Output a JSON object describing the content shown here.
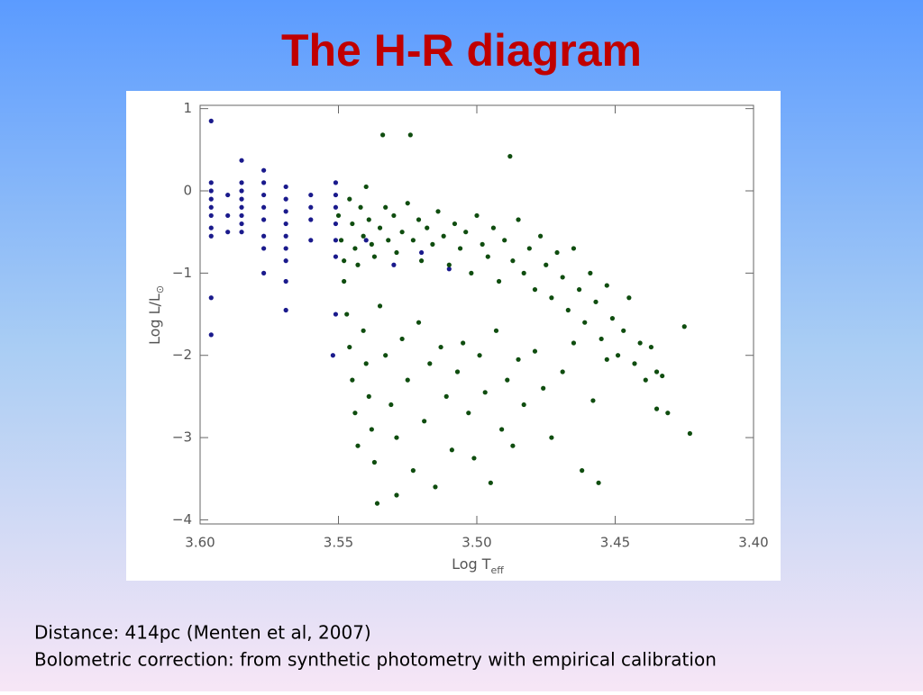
{
  "chart_data": {
    "type": "scatter",
    "title": "The H-R diagram",
    "x_label": "Log T",
    "x_label_sub": "eff",
    "y_label": "Log L/L",
    "y_label_sub": "⊙",
    "xlim": [
      3.6,
      3.4
    ],
    "xticks": [
      {
        "value": 3.6,
        "label": "3.60"
      },
      3.55,
      {
        "value": 3.5,
        "label": "3.50"
      },
      3.45,
      {
        "value": 3.4,
        "label": "3.40"
      }
    ],
    "ylim": [
      -4.05,
      1.04
    ],
    "yticks": [
      1,
      0,
      {
        "value": -1,
        "label": "−1"
      },
      {
        "value": -2,
        "label": "−2"
      },
      {
        "value": -3,
        "label": "−3"
      },
      {
        "value": -4,
        "label": "−4"
      }
    ],
    "series": [
      {
        "color": "#1a1a8c",
        "x": [
          3.596,
          3.596,
          3.596,
          3.596,
          3.596,
          3.596,
          3.596,
          3.596,
          3.596,
          3.596,
          3.59,
          3.59,
          3.59,
          3.585,
          3.585,
          3.585,
          3.585,
          3.585,
          3.585,
          3.585,
          3.585,
          3.577,
          3.577,
          3.577,
          3.577,
          3.577,
          3.577,
          3.577,
          3.577,
          3.569,
          3.569,
          3.569,
          3.569,
          3.569,
          3.569,
          3.569,
          3.569,
          3.569,
          3.56,
          3.56,
          3.56,
          3.56,
          3.551,
          3.551,
          3.551,
          3.551,
          3.551,
          3.551,
          3.551,
          3.552,
          3.54,
          3.53,
          3.52,
          3.51
        ],
        "values": [
          0.85,
          0.1,
          0.0,
          -0.1,
          -0.2,
          -0.3,
          -0.45,
          -0.55,
          -1.3,
          -1.75,
          -0.05,
          -0.3,
          -0.5,
          0.37,
          0.1,
          0.0,
          -0.1,
          -0.2,
          -0.3,
          -0.4,
          -0.5,
          0.25,
          0.1,
          -0.05,
          -0.2,
          -0.35,
          -0.55,
          -0.7,
          -1.0,
          0.05,
          -0.1,
          -0.25,
          -0.4,
          -0.55,
          -0.7,
          -0.85,
          -1.1,
          -1.45,
          -0.05,
          -0.2,
          -0.35,
          -0.6,
          0.1,
          -0.05,
          -0.2,
          -0.4,
          -0.6,
          -0.8,
          -1.5,
          -2.0,
          -0.6,
          -0.9,
          -0.75,
          -0.95
        ]
      },
      {
        "color": "#0f4d0f",
        "x": [
          3.546,
          3.545,
          3.544,
          3.543,
          3.542,
          3.541,
          3.54,
          3.539,
          3.538,
          3.537,
          3.535,
          3.534,
          3.533,
          3.532,
          3.53,
          3.529,
          3.527,
          3.525,
          3.524,
          3.523,
          3.521,
          3.52,
          3.518,
          3.516,
          3.514,
          3.512,
          3.51,
          3.508,
          3.506,
          3.504,
          3.502,
          3.5,
          3.498,
          3.496,
          3.494,
          3.492,
          3.49,
          3.488,
          3.487,
          3.485,
          3.483,
          3.481,
          3.479,
          3.477,
          3.475,
          3.473,
          3.471,
          3.469,
          3.467,
          3.465,
          3.463,
          3.461,
          3.459,
          3.457,
          3.455,
          3.453,
          3.451,
          3.449,
          3.447,
          3.445,
          3.443,
          3.441,
          3.439,
          3.437,
          3.435,
          3.433,
          3.431,
          3.425,
          3.423,
          3.435,
          3.547,
          3.546,
          3.545,
          3.544,
          3.543,
          3.541,
          3.54,
          3.539,
          3.538,
          3.537,
          3.535,
          3.533,
          3.531,
          3.529,
          3.527,
          3.525,
          3.523,
          3.521,
          3.519,
          3.517,
          3.515,
          3.513,
          3.511,
          3.509,
          3.507,
          3.505,
          3.503,
          3.501,
          3.499,
          3.497,
          3.495,
          3.493,
          3.491,
          3.489,
          3.487,
          3.485,
          3.483,
          3.479,
          3.476,
          3.473,
          3.469,
          3.465,
          3.462,
          3.458,
          3.456,
          3.453,
          3.536,
          3.529,
          3.55,
          3.549,
          3.548,
          3.548
        ],
        "values": [
          -0.1,
          -0.4,
          -0.7,
          -0.9,
          -0.2,
          -0.55,
          0.05,
          -0.35,
          -0.65,
          -0.8,
          -0.45,
          0.68,
          -0.2,
          -0.6,
          -0.3,
          -0.75,
          -0.5,
          -0.15,
          0.68,
          -0.6,
          -0.35,
          -0.85,
          -0.45,
          -0.65,
          -0.25,
          -0.55,
          -0.9,
          -0.4,
          -0.7,
          -0.5,
          -1.0,
          -0.3,
          -0.65,
          -0.8,
          -0.45,
          -1.1,
          -0.6,
          0.42,
          -0.85,
          -0.35,
          -1.0,
          -0.7,
          -1.2,
          -0.55,
          -0.9,
          -1.3,
          -0.75,
          -1.05,
          -1.45,
          -0.7,
          -1.2,
          -1.6,
          -1.0,
          -1.35,
          -1.8,
          -1.15,
          -1.55,
          -2.0,
          -1.7,
          -1.3,
          -2.1,
          -1.85,
          -2.3,
          -1.9,
          -2.65,
          -2.25,
          -2.7,
          -1.65,
          -2.95,
          -2.2,
          -1.5,
          -1.9,
          -2.3,
          -2.7,
          -3.1,
          -1.7,
          -2.1,
          -2.5,
          -2.9,
          -3.3,
          -1.4,
          -2.0,
          -2.6,
          -3.0,
          -1.8,
          -2.3,
          -3.4,
          -1.6,
          -2.8,
          -2.1,
          -3.6,
          -1.9,
          -2.5,
          -3.15,
          -2.2,
          -1.85,
          -2.7,
          -3.25,
          -2.0,
          -2.45,
          -3.55,
          -1.7,
          -2.9,
          -2.3,
          -3.1,
          -2.05,
          -2.6,
          -1.95,
          -2.4,
          -3.0,
          -2.2,
          -1.85,
          -3.4,
          -2.55,
          -3.55,
          -2.05,
          -3.8,
          -3.7,
          -0.3,
          -0.6,
          -0.85,
          -1.1
        ]
      }
    ]
  },
  "notes": [
    "Distance: 414pc (Menten et al, 2007)",
    "Bolometric correction: from synthetic photometry with empirical calibration"
  ]
}
